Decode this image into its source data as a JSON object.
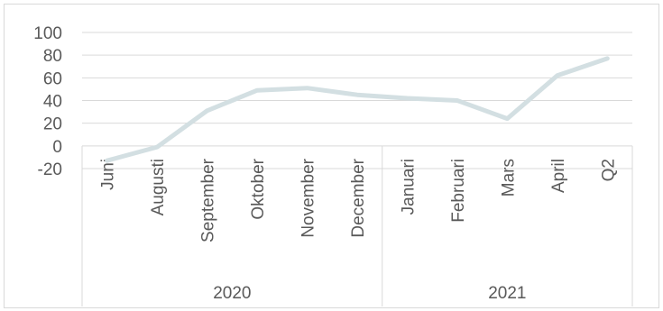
{
  "chart_data": {
    "type": "line",
    "title": "",
    "xlabel": "",
    "ylabel": "",
    "ylim": [
      -20,
      100
    ],
    "yticks": [
      -20,
      0,
      20,
      40,
      60,
      80,
      100
    ],
    "grid": true,
    "legend": "none",
    "categories": [
      "Juni",
      "Augusti",
      "September",
      "Oktober",
      "November",
      "December",
      "Januari",
      "Februari",
      "Mars",
      "April",
      "Q2"
    ],
    "groups": [
      {
        "label": "2020",
        "count": 6
      },
      {
        "label": "2021",
        "count": 5
      }
    ],
    "series": [
      {
        "values": [
          -13,
          -1,
          31,
          49,
          51,
          45,
          42,
          40,
          24,
          62,
          77
        ]
      }
    ],
    "colors": {
      "line": "#d3dfe2",
      "grid": "#d9d9d9",
      "text": "#595959"
    }
  }
}
